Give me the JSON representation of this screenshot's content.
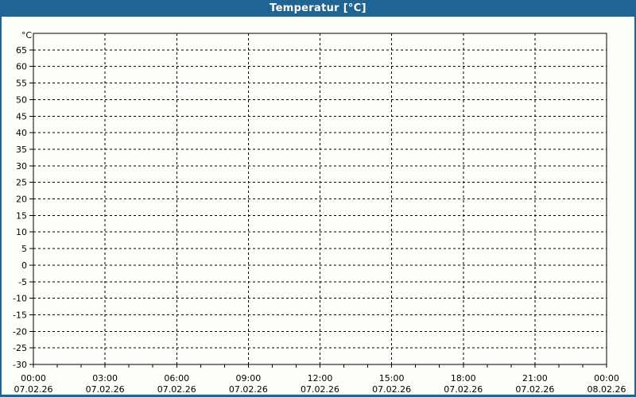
{
  "window": {
    "title": "Temperatur [°C]"
  },
  "colors": {
    "titlebar": "#1F6492",
    "frame": "#1F6492",
    "background": "#FCFFFA",
    "grid": "#000000",
    "text": "#000000",
    "title_text": "#FFFFFF"
  },
  "chart_data": {
    "type": "line",
    "title": "Temperatur [°C]",
    "ylabel": "°C",
    "xlabel": "",
    "ylim": [
      -30,
      70
    ],
    "y_ticks": [
      65,
      60,
      55,
      50,
      45,
      40,
      35,
      30,
      25,
      20,
      15,
      10,
      5,
      0,
      -5,
      -10,
      -15,
      -20,
      -25,
      -30
    ],
    "x_ticks": [
      {
        "time": "00:00",
        "date": "07.02.26"
      },
      {
        "time": "03:00",
        "date": "07.02.26"
      },
      {
        "time": "06:00",
        "date": "07.02.26"
      },
      {
        "time": "09:00",
        "date": "07.02.26"
      },
      {
        "time": "12:00",
        "date": "07.02.26"
      },
      {
        "time": "15:00",
        "date": "07.02.26"
      },
      {
        "time": "18:00",
        "date": "07.02.26"
      },
      {
        "time": "21:00",
        "date": "07.02.26"
      },
      {
        "time": "00:00",
        "date": "08.02.26"
      }
    ],
    "x_hours_span": 24,
    "x_minor_tick_every_hours": 1,
    "grid": "dashed",
    "legend": "none",
    "series": []
  }
}
